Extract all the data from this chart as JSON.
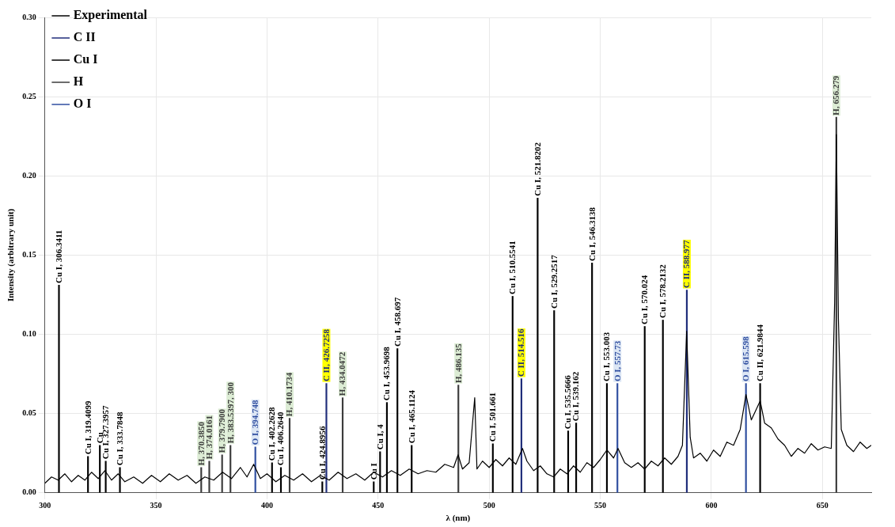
{
  "chart_data": {
    "type": "line",
    "xlabel": "λ (nm)",
    "ylabel": "Intensity (arbitrary unit)",
    "xlim": [
      300,
      672
    ],
    "xticks": [
      300,
      350,
      400,
      450,
      500,
      550,
      600,
      650
    ],
    "ylim": [
      0,
      0.3
    ],
    "yticks": [
      {
        "value": 0,
        "label": "0.00"
      },
      {
        "value": 0.05,
        "label": "0.05"
      },
      {
        "value": 0.1,
        "label": "0.10"
      },
      {
        "value": 0.15,
        "label": "0.15"
      },
      {
        "value": 0.2,
        "label": "0.20"
      },
      {
        "value": 0.25,
        "label": "0.25"
      },
      {
        "value": 0.3,
        "label": "0.30"
      }
    ],
    "grid": true,
    "legend": "top left",
    "marker": "none",
    "series": [
      {
        "name": "Experimental",
        "color": "#000000",
        "line_style": "solid",
        "x": [
          300,
          303,
          306,
          309,
          312,
          315,
          318,
          321,
          324,
          327,
          330,
          333,
          336,
          340,
          344,
          348,
          352,
          356,
          360,
          364,
          368,
          372,
          376,
          380,
          384,
          388,
          391,
          394,
          397,
          400,
          404,
          408,
          412,
          416,
          420,
          424,
          428,
          432,
          436,
          440,
          444,
          448,
          452,
          456,
          460,
          464,
          468,
          472,
          476,
          480,
          484,
          486,
          488,
          491,
          493.5,
          494.5,
          497,
          500,
          503,
          506,
          509,
          512,
          515,
          517,
          520,
          523,
          526,
          529,
          532,
          535,
          538,
          541,
          544,
          547,
          550,
          553,
          556,
          558,
          561,
          564,
          567,
          570,
          573,
          576,
          579,
          582,
          585,
          587,
          588.9,
          590.5,
          592,
          595,
          598,
          601,
          604,
          607,
          610,
          613,
          615.6,
          618,
          620,
          622,
          624,
          627,
          630,
          633,
          636,
          639,
          642,
          645,
          648,
          651,
          654,
          655.5,
          656.3,
          657.2,
          658.5,
          661,
          664,
          667,
          670,
          672
        ],
        "values": [
          0.006,
          0.01,
          0.008,
          0.012,
          0.007,
          0.011,
          0.008,
          0.013,
          0.009,
          0.014,
          0.008,
          0.012,
          0.007,
          0.01,
          0.006,
          0.011,
          0.007,
          0.012,
          0.008,
          0.011,
          0.006,
          0.01,
          0.008,
          0.013,
          0.009,
          0.016,
          0.01,
          0.018,
          0.009,
          0.012,
          0.007,
          0.011,
          0.008,
          0.012,
          0.007,
          0.011,
          0.008,
          0.013,
          0.009,
          0.012,
          0.008,
          0.013,
          0.01,
          0.014,
          0.011,
          0.015,
          0.012,
          0.014,
          0.013,
          0.018,
          0.016,
          0.024,
          0.015,
          0.019,
          0.06,
          0.015,
          0.02,
          0.016,
          0.021,
          0.017,
          0.022,
          0.018,
          0.028,
          0.02,
          0.014,
          0.017,
          0.012,
          0.01,
          0.015,
          0.012,
          0.017,
          0.013,
          0.019,
          0.016,
          0.021,
          0.027,
          0.022,
          0.028,
          0.019,
          0.016,
          0.019,
          0.015,
          0.02,
          0.017,
          0.022,
          0.018,
          0.023,
          0.03,
          0.102,
          0.035,
          0.022,
          0.025,
          0.02,
          0.027,
          0.023,
          0.032,
          0.03,
          0.04,
          0.062,
          0.046,
          0.052,
          0.058,
          0.044,
          0.041,
          0.034,
          0.03,
          0.023,
          0.028,
          0.025,
          0.031,
          0.027,
          0.029,
          0.028,
          0.12,
          0.226,
          0.11,
          0.04,
          0.03,
          0.026,
          0.032,
          0.028,
          0.03
        ]
      },
      {
        "name": "C II",
        "type": "bar",
        "color": "#1f2d7a",
        "x": [
          426.7258,
          514.516,
          588.977
        ],
        "values": [
          0.069,
          0.072,
          0.128
        ]
      },
      {
        "name": "Cu I",
        "type": "bar",
        "color": "#000000",
        "x": [
          306.3411,
          319.4099,
          324.754,
          327.3957,
          333.7848,
          402.2628,
          406.264,
          424.8956,
          448.035,
          450.9,
          453.9698,
          458.697,
          465.1124,
          501.661,
          510.5541,
          521.8202,
          529.2517,
          535.5666,
          539.162,
          546.3138,
          553.003,
          570.024,
          578.2132,
          621.9844
        ],
        "values": [
          0.131,
          0.023,
          0.03,
          0.02,
          0.016,
          0.019,
          0.016,
          0.007,
          0.007,
          0.026,
          0.057,
          0.091,
          0.03,
          0.031,
          0.124,
          0.186,
          0.115,
          0.039,
          0.044,
          0.145,
          0.069,
          0.105,
          0.109,
          0.069
        ]
      },
      {
        "name": "H",
        "type": "bar",
        "color": "#3c3c3c",
        "x": [
          370.385,
          374.0161,
          379.79,
          383.5397,
          410.1734,
          434.0472,
          486.135,
          656.279
        ],
        "values": [
          0.016,
          0.02,
          0.024,
          0.03,
          0.047,
          0.06,
          0.068,
          0.237
        ]
      },
      {
        "name": "O I",
        "type": "bar",
        "color": "#2f4ea0",
        "x": [
          394.748,
          557.73,
          615.598
        ],
        "values": [
          0.029,
          0.069,
          0.069
        ]
      }
    ],
    "annotations": [
      {
        "text": "C II, 426.7258",
        "x": 426.7258,
        "y": 0.069
      },
      {
        "text": "C II, 514.516",
        "x": 514.516,
        "y": 0.072
      },
      {
        "text": "C II, 588.977",
        "x": 588.977,
        "y": 0.128
      },
      {
        "text": "Cu I, 306.3411",
        "x": 306.3411,
        "y": 0.131
      },
      {
        "text": "Cu I, 319.4099",
        "x": 319.4099,
        "y": 0.023
      },
      {
        "text": "Cu",
        "x": 324.754,
        "y": 0.03
      },
      {
        "text": "Cu I, 327.3957",
        "x": 327.3957,
        "y": 0.02
      },
      {
        "text": "Cu I, 333.7848",
        "x": 333.7848,
        "y": 0.016
      },
      {
        "text": "Cu I, 402.2628",
        "x": 402.2628,
        "y": 0.019
      },
      {
        "text": "Cu I, 406.2640",
        "x": 406.264,
        "y": 0.016
      },
      {
        "text": "Cu I, 424.8956",
        "x": 424.8956,
        "y": 0.007
      },
      {
        "text": "Cu I",
        "x": 448.035,
        "y": 0.007
      },
      {
        "text": "Cu I, 4",
        "x": 450.9,
        "y": 0.026
      },
      {
        "text": "Cu I, 453.9698",
        "x": 453.9698,
        "y": 0.057
      },
      {
        "text": "Cu I, 458.697",
        "x": 458.697,
        "y": 0.091
      },
      {
        "text": "Cu I, 465.1124",
        "x": 465.1124,
        "y": 0.03
      },
      {
        "text": "Cu I, 501.661",
        "x": 501.661,
        "y": 0.031
      },
      {
        "text": "Cu I, 510.5541",
        "x": 510.5541,
        "y": 0.124
      },
      {
        "text": "Cu I, 521.8202",
        "x": 521.8202,
        "y": 0.186
      },
      {
        "text": "Cu I, 529.2517",
        "x": 529.2517,
        "y": 0.115
      },
      {
        "text": "Cu I, 535.5666",
        "x": 535.5666,
        "y": 0.039
      },
      {
        "text": "Cu I, 539.162",
        "x": 539.162,
        "y": 0.044
      },
      {
        "text": "Cu I, 546.3138",
        "x": 546.3138,
        "y": 0.145
      },
      {
        "text": "Cu I, 553.003",
        "x": 553.003,
        "y": 0.069
      },
      {
        "text": "Cu I, 570.024",
        "x": 570.024,
        "y": 0.105
      },
      {
        "text": "Cu I, 578.2132",
        "x": 578.2132,
        "y": 0.109
      },
      {
        "text": "Cu II, 621.9844",
        "x": 621.9844,
        "y": 0.069
      },
      {
        "text": "H, 370.3850",
        "x": 370.385,
        "y": 0.016
      },
      {
        "text": "H, 374.0161",
        "x": 374.0161,
        "y": 0.02
      },
      {
        "text": "H, 379.7900",
        "x": 379.79,
        "y": 0.024
      },
      {
        "text": "H, 383.5397, 300",
        "x": 383.5397,
        "y": 0.03
      },
      {
        "text": "H, 410.1734",
        "x": 410.1734,
        "y": 0.047
      },
      {
        "text": "H, 434.0472",
        "x": 434.0472,
        "y": 0.06
      },
      {
        "text": "H, 486.135",
        "x": 486.135,
        "y": 0.068
      },
      {
        "text": "H, 656.279",
        "x": 656.279,
        "y": 0.237
      },
      {
        "text": "O I, 394.748",
        "x": 394.748,
        "y": 0.029
      },
      {
        "text": "O I, 557.73",
        "x": 557.73,
        "y": 0.069
      },
      {
        "text": "O I, 615.598",
        "x": 615.598,
        "y": 0.069
      }
    ]
  }
}
